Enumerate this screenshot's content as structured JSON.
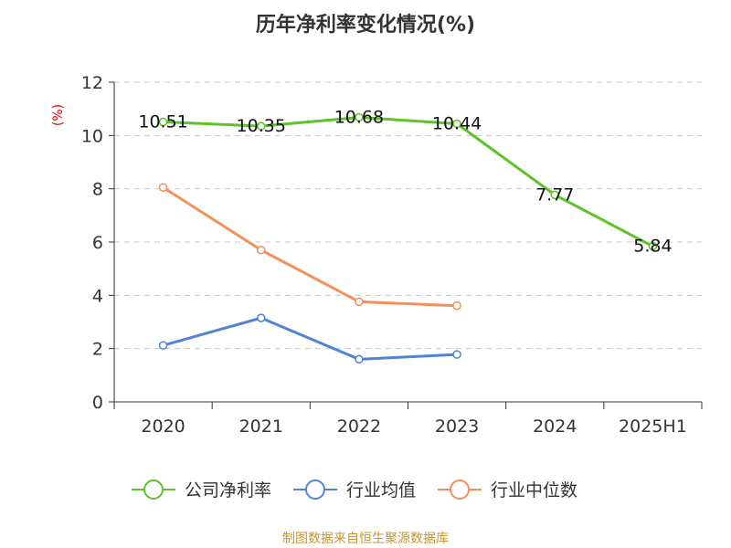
{
  "chart_data": {
    "type": "line",
    "title": "历年净利率变化情况(%)",
    "ylabel": "(%)",
    "xlabel": "",
    "categories": [
      "2020",
      "2021",
      "2022",
      "2023",
      "2024",
      "2025H1"
    ],
    "ylim": [
      0,
      12
    ],
    "yticks": [
      0,
      2,
      4,
      6,
      8,
      10,
      12
    ],
    "grid": "horizontal-dashed",
    "legend_position": "bottom",
    "series": [
      {
        "name": "公司净利率",
        "color": "#5ec229",
        "values": [
          10.51,
          10.35,
          10.68,
          10.44,
          7.77,
          5.84
        ],
        "labels": [
          "10.51",
          "10.35",
          "10.68",
          "10.44",
          "7.77",
          "5.84"
        ]
      },
      {
        "name": "行业均值",
        "color": "#4f83d8",
        "values": [
          2.12,
          3.15,
          1.6,
          1.78,
          null,
          null
        ]
      },
      {
        "name": "行业中位数",
        "color": "#f58f5b",
        "values": [
          8.05,
          5.7,
          3.76,
          3.61,
          null,
          null
        ]
      }
    ]
  },
  "source": "制图数据来自恒生聚源数据库"
}
